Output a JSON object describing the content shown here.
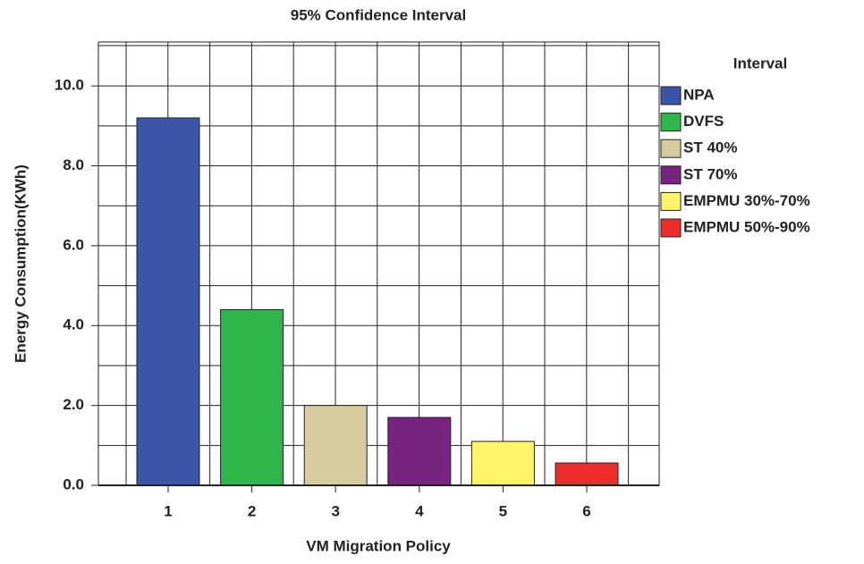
{
  "chart_data": {
    "type": "bar",
    "title": "95% Confidence Interval",
    "x_label": "VM Migration Policy",
    "y_label": "Energy Consumption(KWh)",
    "categories": [
      "1",
      "2",
      "3",
      "4",
      "5",
      "6"
    ],
    "values": [
      9.2,
      4.4,
      2.0,
      1.7,
      1.1,
      0.56
    ],
    "colors": [
      "#3b55a7",
      "#2eb64a",
      "#d5cb9c",
      "#792380",
      "#fdf567",
      "#ee2c2c"
    ],
    "legend_title": "Interval",
    "legend_labels": [
      "NPA",
      "DVFS",
      "ST 40%",
      "ST 70%",
      "EMPMU 30%-70%",
      "EMPMU 50%-90%"
    ],
    "ylim": [
      0,
      11.1
    ],
    "yticks": [
      {
        "value": 0,
        "label": "0.0"
      },
      {
        "value": 2,
        "label": "2.0"
      },
      {
        "value": 4,
        "label": "4.0"
      },
      {
        "value": 6,
        "label": "6.0"
      },
      {
        "value": 8,
        "label": "8.0"
      },
      {
        "value": 10,
        "label": "10.0"
      }
    ],
    "minor_yticks": [
      1,
      3,
      5,
      7,
      9
    ],
    "grid": true
  }
}
